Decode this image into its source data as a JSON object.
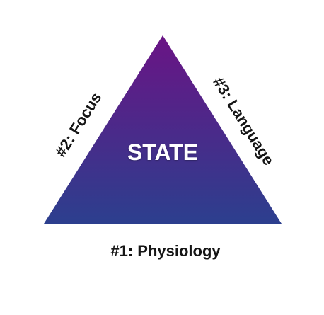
{
  "diagram": {
    "center_label": "STATE",
    "left_side_label": "#2: Focus",
    "right_side_label": "#3: Language",
    "base_label": "#1: Physiology"
  },
  "colors": {
    "triangle_top": "#6a1485",
    "triangle_bottom": "#2c3f8e",
    "label_text": "#151515",
    "center_text": "#ffffff"
  }
}
